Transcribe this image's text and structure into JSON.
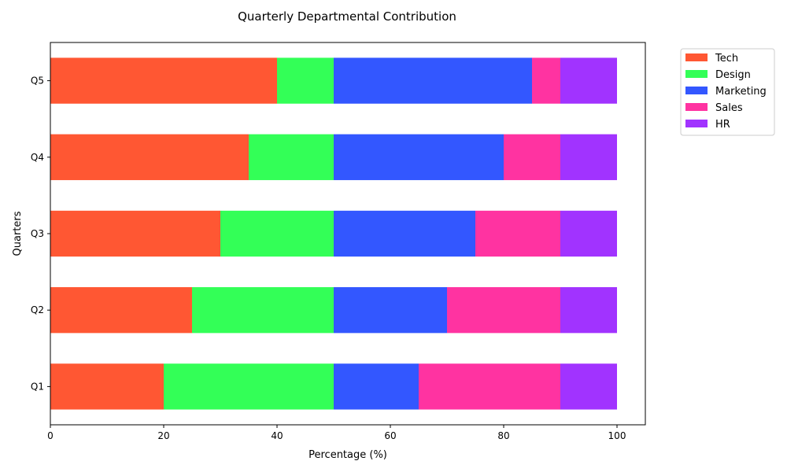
{
  "chart_data": {
    "type": "bar",
    "orientation": "horizontal",
    "stacked": true,
    "title": "Quarterly Departmental Contribution",
    "xlabel": "Percentage (%)",
    "ylabel": "Quarters",
    "xlim": [
      0,
      105
    ],
    "xticks": [
      "0",
      "20",
      "40",
      "60",
      "80",
      "100"
    ],
    "categories": [
      "Q1",
      "Q2",
      "Q3",
      "Q4",
      "Q5"
    ],
    "series": [
      {
        "name": "Tech",
        "color": "#FF5733",
        "values": [
          20,
          25,
          30,
          35,
          40
        ]
      },
      {
        "name": "Design",
        "color": "#33FF57",
        "values": [
          30,
          25,
          20,
          15,
          10
        ]
      },
      {
        "name": "Marketing",
        "color": "#3357FF",
        "values": [
          15,
          20,
          25,
          30,
          35
        ]
      },
      {
        "name": "Sales",
        "color": "#FF33A1",
        "values": [
          25,
          20,
          15,
          10,
          5
        ]
      },
      {
        "name": "HR",
        "color": "#A133FF",
        "values": [
          10,
          10,
          10,
          10,
          10
        ]
      }
    ],
    "grid": false,
    "legend_position": "outside-top-right"
  }
}
